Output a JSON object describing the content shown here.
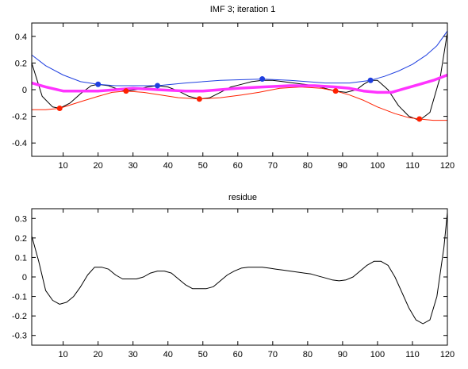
{
  "chart_data": [
    {
      "type": "line",
      "title": "IMF 3;   iteration 1",
      "xlim": [
        1,
        120
      ],
      "ylim": [
        -0.5,
        0.5
      ],
      "xticks": [
        10,
        20,
        30,
        40,
        50,
        60,
        70,
        80,
        90,
        100,
        110,
        120
      ],
      "yticks": [
        -0.4,
        -0.2,
        0,
        0.2,
        0.4
      ],
      "xtick_labels": [
        "10",
        "20",
        "30",
        "40",
        "50",
        "60",
        "70",
        "80",
        "90",
        "100",
        "110",
        "120"
      ],
      "ytick_labels": [
        "-0.4",
        "-0.2",
        "0",
        "0.2",
        "0.4"
      ],
      "grid": false,
      "colors": {
        "signal": "#000000",
        "upper": "#1f3fe0",
        "lower": "#ff2000",
        "mean": "#ff33ff"
      },
      "series": [
        {
          "key": "signal",
          "x": [
            1,
            4,
            7,
            9,
            12,
            15,
            18,
            20,
            23,
            26,
            28,
            31,
            34,
            37,
            40,
            43,
            46,
            49,
            52,
            55,
            58,
            61,
            64,
            67,
            70,
            73,
            76,
            79,
            82,
            85,
            88,
            91,
            94,
            96,
            98,
            100,
            103,
            106,
            109,
            112,
            115,
            118,
            120
          ],
          "y": [
            0.2,
            -0.05,
            -0.13,
            -0.14,
            -0.1,
            -0.03,
            0.03,
            0.04,
            0.03,
            0.0,
            -0.01,
            0.0,
            0.02,
            0.03,
            0.02,
            -0.01,
            -0.05,
            -0.07,
            -0.06,
            -0.02,
            0.02,
            0.04,
            0.06,
            0.07,
            0.07,
            0.06,
            0.05,
            0.04,
            0.03,
            0.01,
            -0.01,
            -0.02,
            0.0,
            0.04,
            0.07,
            0.07,
            0.0,
            -0.12,
            -0.2,
            -0.23,
            -0.17,
            0.1,
            0.43
          ]
        },
        {
          "key": "upper",
          "x": [
            1,
            5,
            10,
            15,
            20,
            25,
            30,
            37,
            45,
            55,
            67,
            75,
            85,
            92,
            98,
            102,
            106,
            110,
            114,
            117,
            120
          ],
          "y": [
            0.26,
            0.18,
            0.11,
            0.06,
            0.04,
            0.03,
            0.03,
            0.03,
            0.05,
            0.07,
            0.08,
            0.07,
            0.05,
            0.05,
            0.07,
            0.1,
            0.14,
            0.19,
            0.26,
            0.33,
            0.44
          ]
        },
        {
          "key": "lower",
          "x": [
            1,
            5,
            9,
            15,
            20,
            24,
            28,
            33,
            38,
            43,
            49,
            55,
            61,
            66,
            72,
            78,
            84,
            88,
            92,
            96,
            100,
            105,
            109,
            112,
            116,
            120
          ],
          "y": [
            -0.15,
            -0.15,
            -0.14,
            -0.09,
            -0.05,
            -0.02,
            -0.01,
            -0.02,
            -0.04,
            -0.06,
            -0.07,
            -0.06,
            -0.04,
            -0.02,
            0.01,
            0.02,
            0.01,
            -0.01,
            -0.04,
            -0.08,
            -0.13,
            -0.18,
            -0.21,
            -0.22,
            -0.23,
            -0.23
          ]
        },
        {
          "key": "mean",
          "x": [
            1,
            5,
            10,
            15,
            20,
            25,
            30,
            37,
            45,
            50,
            55,
            60,
            67,
            75,
            82,
            88,
            92,
            96,
            100,
            104,
            108,
            112,
            116,
            120
          ],
          "y": [
            0.05,
            0.02,
            -0.01,
            -0.01,
            -0.01,
            0.0,
            0.01,
            0.0,
            -0.01,
            -0.01,
            0.0,
            0.01,
            0.02,
            0.03,
            0.03,
            0.02,
            0.01,
            -0.01,
            -0.02,
            -0.02,
            0.01,
            0.04,
            0.07,
            0.11
          ]
        }
      ],
      "maxima": {
        "x": [
          20,
          37,
          67,
          98
        ],
        "y": [
          0.04,
          0.03,
          0.08,
          0.07
        ]
      },
      "minima": {
        "x": [
          9,
          28,
          49,
          88,
          112
        ],
        "y": [
          -0.14,
          -0.01,
          -0.07,
          -0.01,
          -0.22
        ]
      }
    },
    {
      "type": "line",
      "title": "residue",
      "xlim": [
        1,
        120
      ],
      "ylim": [
        -0.35,
        0.35
      ],
      "xticks": [
        10,
        20,
        30,
        40,
        50,
        60,
        70,
        80,
        90,
        100,
        110,
        120
      ],
      "yticks": [
        -0.3,
        -0.2,
        -0.1,
        0,
        0.1,
        0.2,
        0.3
      ],
      "xtick_labels": [
        "10",
        "20",
        "30",
        "40",
        "50",
        "60",
        "70",
        "80",
        "90",
        "100",
        "110",
        "120"
      ],
      "ytick_labels": [
        "-0.3",
        "-0.2",
        "-0.1",
        "0",
        "0.1",
        "0.2",
        "0.3"
      ],
      "grid": false,
      "colors": {
        "residue": "#000000"
      },
      "series": [
        {
          "key": "residue",
          "x": [
            1,
            3,
            5,
            7,
            9,
            11,
            13,
            15,
            17,
            19,
            21,
            23,
            25,
            27,
            29,
            31,
            33,
            35,
            37,
            39,
            41,
            43,
            45,
            47,
            49,
            51,
            53,
            55,
            57,
            59,
            61,
            63,
            65,
            67,
            69,
            71,
            73,
            75,
            77,
            79,
            81,
            83,
            85,
            87,
            89,
            91,
            93,
            95,
            97,
            99,
            101,
            103,
            105,
            107,
            109,
            111,
            113,
            115,
            117,
            119,
            120
          ],
          "y": [
            0.21,
            0.08,
            -0.07,
            -0.12,
            -0.14,
            -0.13,
            -0.1,
            -0.05,
            0.01,
            0.05,
            0.05,
            0.04,
            0.01,
            -0.01,
            -0.01,
            -0.01,
            0.0,
            0.02,
            0.03,
            0.03,
            0.02,
            -0.01,
            -0.04,
            -0.06,
            -0.06,
            -0.06,
            -0.05,
            -0.02,
            0.01,
            0.03,
            0.045,
            0.05,
            0.05,
            0.05,
            0.045,
            0.04,
            0.035,
            0.03,
            0.025,
            0.02,
            0.015,
            0.005,
            -0.005,
            -0.015,
            -0.02,
            -0.015,
            0.0,
            0.03,
            0.06,
            0.08,
            0.08,
            0.06,
            0.0,
            -0.08,
            -0.16,
            -0.22,
            -0.24,
            -0.22,
            -0.1,
            0.15,
            0.33
          ]
        }
      ]
    }
  ]
}
